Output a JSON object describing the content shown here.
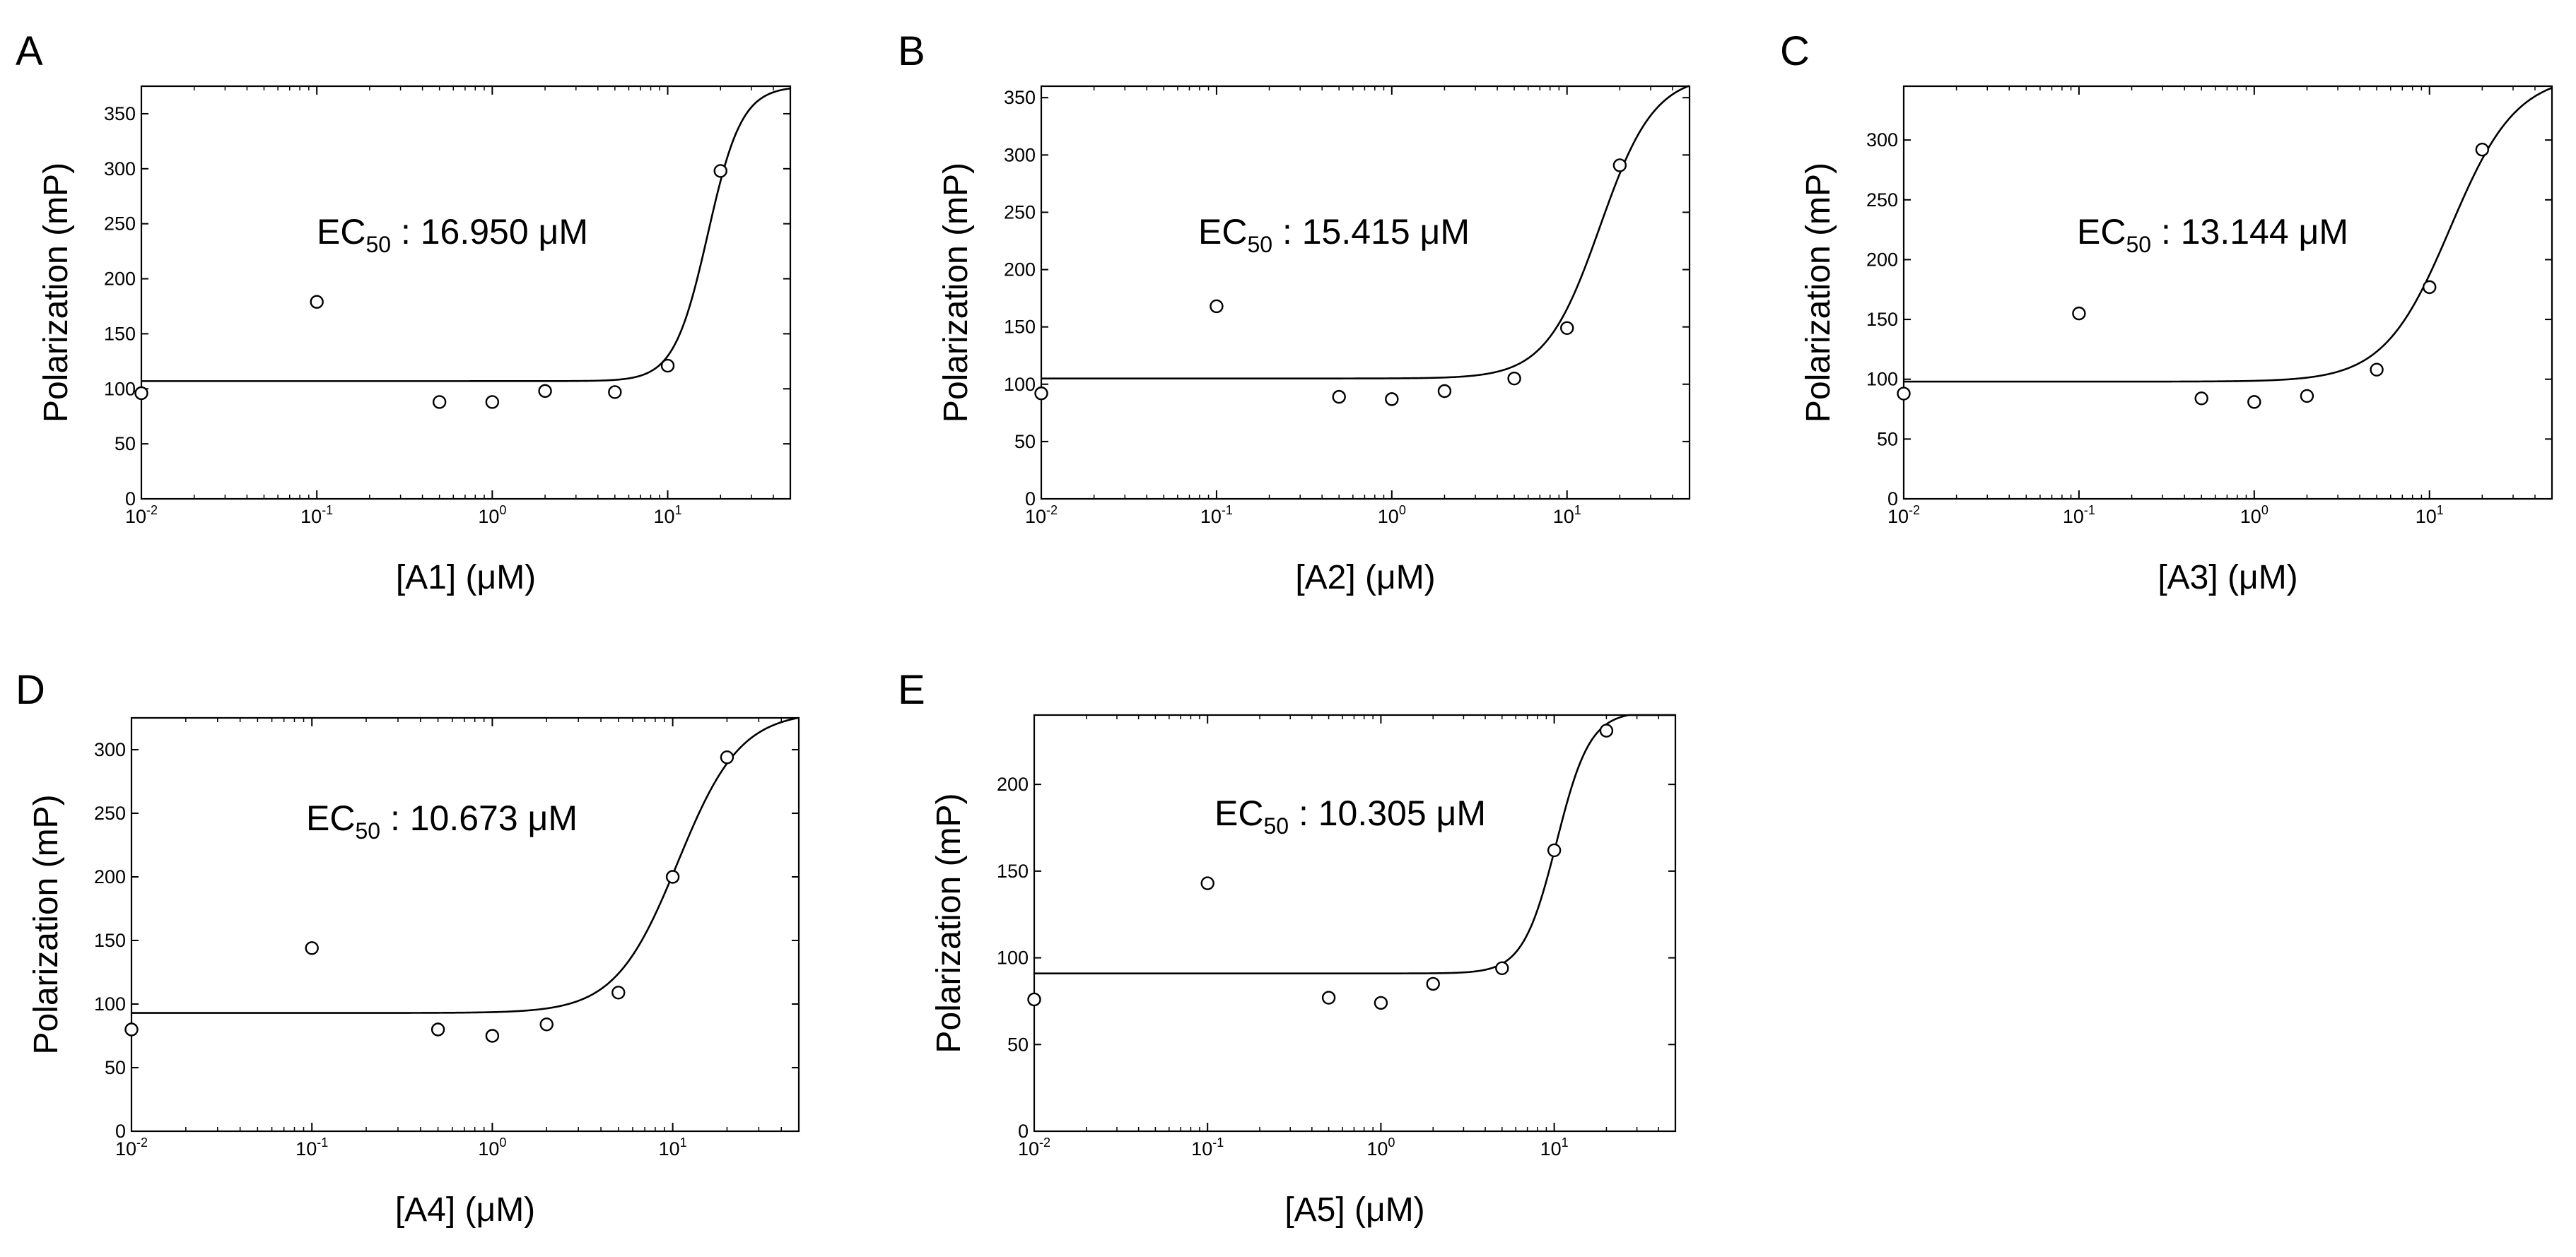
{
  "figure": {
    "panels": [
      "A",
      "B",
      "C",
      "D",
      "E"
    ]
  },
  "chart_data": [
    {
      "panel": "A",
      "type": "scatter",
      "title": "",
      "xlabel": "[A1] (μM)",
      "ylabel": "Polarization (mP)",
      "xscale": "log",
      "xlim": [
        0.01,
        50
      ],
      "ylim": [
        0,
        375
      ],
      "yticks": [
        0,
        50,
        100,
        150,
        200,
        250,
        300,
        350
      ],
      "xticks": [
        {
          "value": 0.01,
          "base": "10",
          "exp": "-2"
        },
        {
          "value": 0.1,
          "base": "10",
          "exp": "-1"
        },
        {
          "value": 1,
          "base": "10",
          "exp": "0"
        },
        {
          "value": 10,
          "base": "10",
          "exp": "1"
        }
      ],
      "points": [
        [
          0.01,
          96
        ],
        [
          0.1,
          179
        ],
        [
          0.5,
          88
        ],
        [
          1,
          88
        ],
        [
          2,
          98
        ],
        [
          5,
          97
        ],
        [
          10,
          121
        ],
        [
          20,
          298
        ]
      ],
      "fit": {
        "bottom": 107,
        "top": 375,
        "ec50": 16.95,
        "hill": 4.5
      },
      "annotation": {
        "prefix": "EC",
        "sub": "50",
        "suffix": " : 16.950 μM"
      },
      "grid": false
    },
    {
      "panel": "B",
      "type": "scatter",
      "title": "",
      "xlabel": "[A2] (μM)",
      "ylabel": "Polarization (mP)",
      "xscale": "log",
      "xlim": [
        0.01,
        50
      ],
      "ylim": [
        0,
        360
      ],
      "yticks": [
        0,
        50,
        100,
        150,
        200,
        250,
        300,
        350
      ],
      "xticks": [
        {
          "value": 0.01,
          "base": "10",
          "exp": "-2"
        },
        {
          "value": 0.1,
          "base": "10",
          "exp": "-1"
        },
        {
          "value": 1,
          "base": "10",
          "exp": "0"
        },
        {
          "value": 10,
          "base": "10",
          "exp": "1"
        }
      ],
      "points": [
        [
          0.01,
          92
        ],
        [
          0.1,
          168
        ],
        [
          0.5,
          89
        ],
        [
          1,
          87
        ],
        [
          2,
          94
        ],
        [
          5,
          105
        ],
        [
          10,
          149
        ],
        [
          20,
          291
        ]
      ],
      "fit": {
        "bottom": 105,
        "top": 370,
        "ec50": 15.415,
        "hill": 2.8
      },
      "annotation": {
        "prefix": "EC",
        "sub": "50",
        "suffix": " : 15.415 μM"
      },
      "grid": false
    },
    {
      "panel": "C",
      "type": "scatter",
      "title": "",
      "xlabel": "[A3] (μM)",
      "ylabel": "Polarization (mP)",
      "xscale": "log",
      "xlim": [
        0.01,
        50
      ],
      "ylim": [
        0,
        345
      ],
      "yticks": [
        0,
        50,
        100,
        150,
        200,
        250,
        300
      ],
      "xticks": [
        {
          "value": 0.01,
          "base": "10",
          "exp": "-2"
        },
        {
          "value": 0.1,
          "base": "10",
          "exp": "-1"
        },
        {
          "value": 1,
          "base": "10",
          "exp": "0"
        },
        {
          "value": 10,
          "base": "10",
          "exp": "1"
        }
      ],
      "points": [
        [
          0.01,
          88
        ],
        [
          0.1,
          155
        ],
        [
          0.5,
          84
        ],
        [
          1,
          81
        ],
        [
          2,
          86
        ],
        [
          5,
          108
        ],
        [
          10,
          177
        ],
        [
          20,
          292
        ]
      ],
      "fit": {
        "bottom": 98,
        "top": 355,
        "ec50": 13.144,
        "hill": 2.3
      },
      "annotation": {
        "prefix": "EC",
        "sub": "50",
        "suffix": " : 13.144 μM"
      },
      "grid": false
    },
    {
      "panel": "D",
      "type": "scatter",
      "title": "",
      "xlabel": "[A4] (μM)",
      "ylabel": "Polarization (mP)",
      "xscale": "log",
      "xlim": [
        0.01,
        50
      ],
      "ylim": [
        0,
        325
      ],
      "yticks": [
        0,
        50,
        100,
        150,
        200,
        250,
        300
      ],
      "xticks": [
        {
          "value": 0.01,
          "base": "10",
          "exp": "-2"
        },
        {
          "value": 0.1,
          "base": "10",
          "exp": "-1"
        },
        {
          "value": 1,
          "base": "10",
          "exp": "0"
        },
        {
          "value": 10,
          "base": "10",
          "exp": "1"
        }
      ],
      "points": [
        [
          0.01,
          80
        ],
        [
          0.1,
          144
        ],
        [
          0.5,
          80
        ],
        [
          1,
          75
        ],
        [
          2,
          84
        ],
        [
          5,
          109
        ],
        [
          10,
          200
        ],
        [
          20,
          294
        ]
      ],
      "fit": {
        "bottom": 93,
        "top": 330,
        "ec50": 10.673,
        "hill": 2.5
      },
      "annotation": {
        "prefix": "EC",
        "sub": "50",
        "suffix": " : 10.673 μM"
      },
      "grid": false
    },
    {
      "panel": "E",
      "type": "scatter",
      "title": "",
      "xlabel": "[A5] (μM)",
      "ylabel": "Polarization (mP)",
      "xscale": "log",
      "xlim": [
        0.01,
        50
      ],
      "ylim": [
        0,
        240
      ],
      "yticks": [
        0,
        50,
        100,
        150,
        200
      ],
      "xticks": [
        {
          "value": 0.01,
          "base": "10",
          "exp": "-2"
        },
        {
          "value": 0.1,
          "base": "10",
          "exp": "-1"
        },
        {
          "value": 1,
          "base": "10",
          "exp": "0"
        },
        {
          "value": 10,
          "base": "10",
          "exp": "1"
        }
      ],
      "points": [
        [
          0.01,
          76
        ],
        [
          0.1,
          143
        ],
        [
          0.5,
          77
        ],
        [
          1,
          74
        ],
        [
          2,
          85
        ],
        [
          5,
          94
        ],
        [
          10,
          162
        ],
        [
          20,
          231
        ]
      ],
      "fit": {
        "bottom": 91,
        "top": 242,
        "ec50": 10.305,
        "hill": 4.5
      },
      "annotation": {
        "prefix": "EC",
        "sub": "50",
        "suffix": " : 10.305 μM"
      },
      "grid": false
    }
  ]
}
